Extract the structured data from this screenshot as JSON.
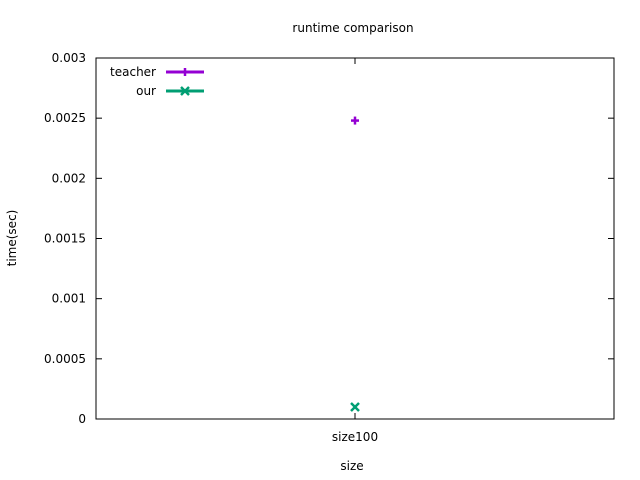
{
  "chart_data": {
    "type": "scatter",
    "title": "runtime comparison",
    "xlabel": "size",
    "ylabel": "time(sec)",
    "categories": [
      "size100"
    ],
    "ylim": [
      0,
      0.003
    ],
    "yticks": [
      "0",
      "0.0005",
      "0.001",
      "0.0015",
      "0.002",
      "0.0025",
      "0.003"
    ],
    "grid": false,
    "legend_position": "top-left",
    "series": [
      {
        "name": "teacher",
        "values": [
          0.00248
        ],
        "color": "#9400d3",
        "marker": "plus"
      },
      {
        "name": "our",
        "values": [
          0.0001
        ],
        "color": "#009e73",
        "marker": "cross"
      }
    ]
  }
}
